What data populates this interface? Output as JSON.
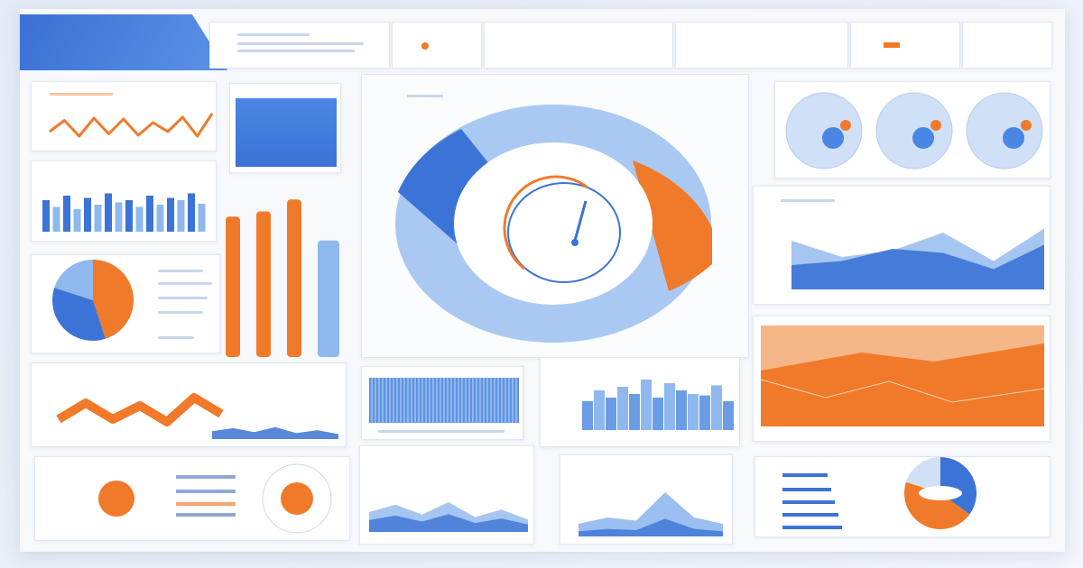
{
  "colors": {
    "blue": "#3b73d6",
    "light_blue": "#8fb8ee",
    "pale_blue": "#cfe0f7",
    "orange": "#f07a2a",
    "pale_orange": "#f8c7a0",
    "bg": "#f7f9fc"
  },
  "header": {
    "banner_color": "#3b73d6"
  },
  "charts": {
    "top_line": [
      30,
      55,
      20,
      60,
      25,
      58,
      22,
      50,
      30,
      62,
      20,
      70
    ],
    "top_bars": [
      70,
      55,
      80,
      50,
      75,
      60,
      85,
      65,
      70,
      55,
      80,
      60,
      75,
      70,
      85,
      62
    ],
    "tall_bars": [
      {
        "value": 82,
        "color": "orange"
      },
      {
        "value": 85,
        "color": "orange"
      },
      {
        "value": 92,
        "color": "orange"
      },
      {
        "value": 68,
        "color": "light_blue"
      }
    ],
    "pie": [
      {
        "value": 45,
        "color": "orange"
      },
      {
        "value": 35,
        "color": "blue"
      },
      {
        "value": 20,
        "color": "light_blue"
      }
    ],
    "zigzag": [
      30,
      60,
      30,
      55,
      25,
      70,
      40
    ],
    "area_right": [
      [
        60,
        40,
        48,
        70,
        35,
        75
      ],
      [
        30,
        35,
        50,
        45,
        25,
        55
      ]
    ],
    "mid_bars": [
      40,
      55,
      45,
      60,
      50,
      70,
      45,
      65,
      55,
      50,
      48,
      62,
      40
    ],
    "mountain": [
      20,
      30,
      25,
      70,
      30,
      20
    ],
    "wave": [
      40,
      55,
      35,
      60,
      30,
      45,
      25
    ],
    "donut": [
      {
        "value": 35,
        "color": "blue"
      },
      {
        "value": 45,
        "color": "orange"
      },
      {
        "value": 20,
        "color": "pale_blue"
      }
    ]
  }
}
